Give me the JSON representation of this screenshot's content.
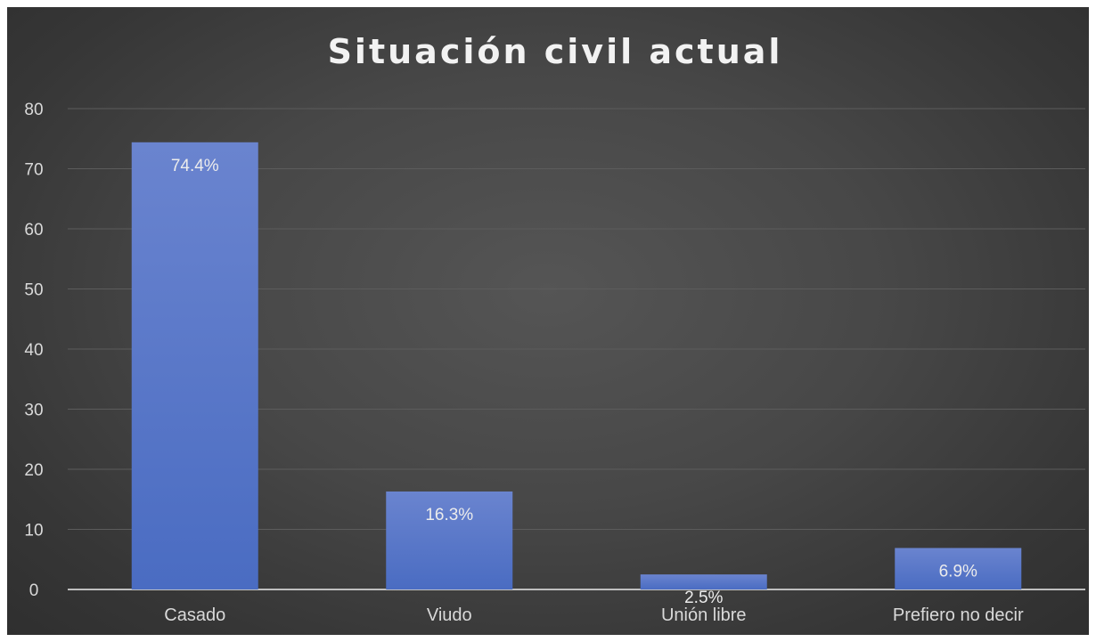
{
  "chart_data": {
    "type": "bar",
    "title": "Situación civil actual",
    "xlabel": "",
    "ylabel": "",
    "categories": [
      "Casado",
      "Viudo",
      "Unión libre",
      "Prefiero no decir"
    ],
    "values": [
      74.4,
      16.3,
      2.5,
      6.9
    ],
    "data_labels": [
      "74.4%",
      "16.3%",
      "2.5%",
      "6.9%"
    ],
    "ylim": [
      0,
      80
    ],
    "yticks": [
      0,
      10,
      20,
      30,
      40,
      50,
      60,
      70,
      80
    ],
    "grid": true,
    "legend": "none",
    "colors": {
      "bar_top": "#6a84cf",
      "bar_bottom": "#4a6cc2",
      "grid": "#5c5c5c",
      "axis": "#bfbfbf"
    }
  }
}
